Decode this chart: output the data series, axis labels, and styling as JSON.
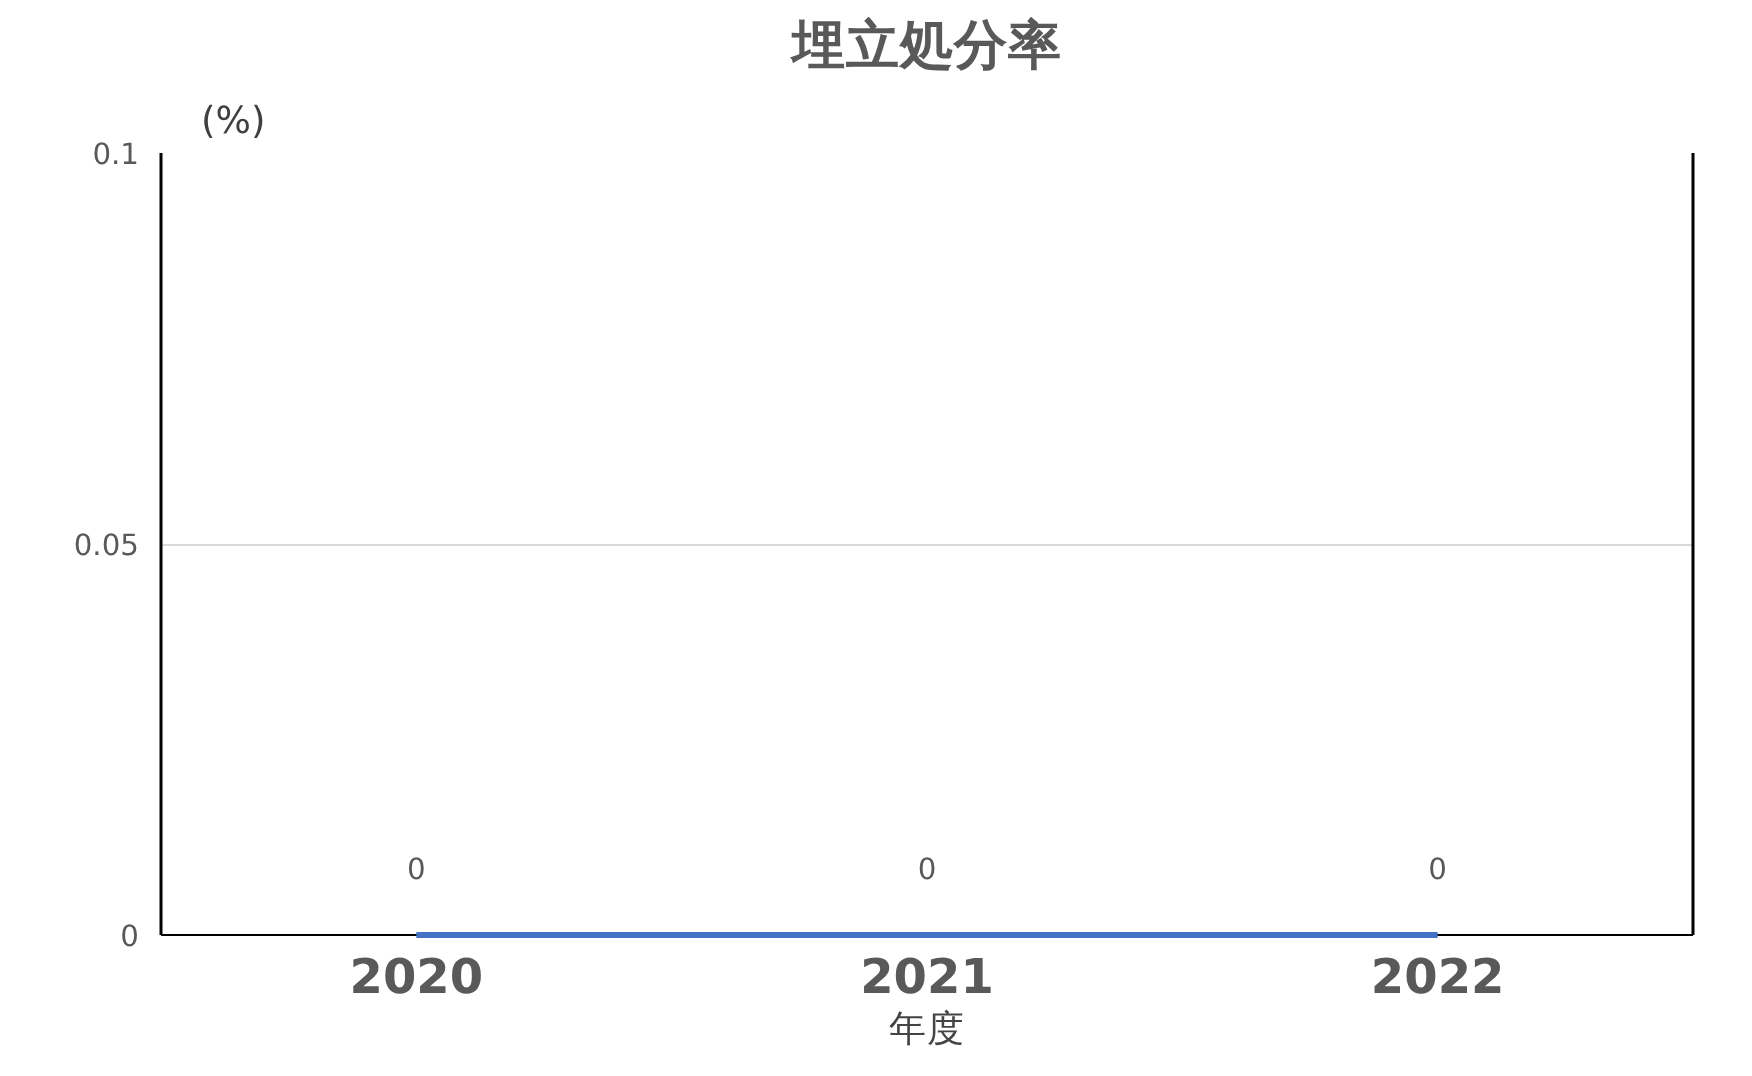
{
  "chart_data": {
    "type": "line",
    "title": "埋立処分率",
    "ylabel": "(%)",
    "xlabel": "年度",
    "categories": [
      "2020",
      "2021",
      "2022"
    ],
    "series": [
      {
        "color": "#4472c4",
        "values": [
          0,
          0,
          0
        ],
        "value_labels": [
          "0",
          "0",
          "0"
        ]
      }
    ],
    "ylim": [
      0,
      0.1
    ],
    "yticks": [
      0,
      0.05,
      0.1
    ],
    "grid": "y",
    "marker": "none",
    "line_style": "solid"
  }
}
